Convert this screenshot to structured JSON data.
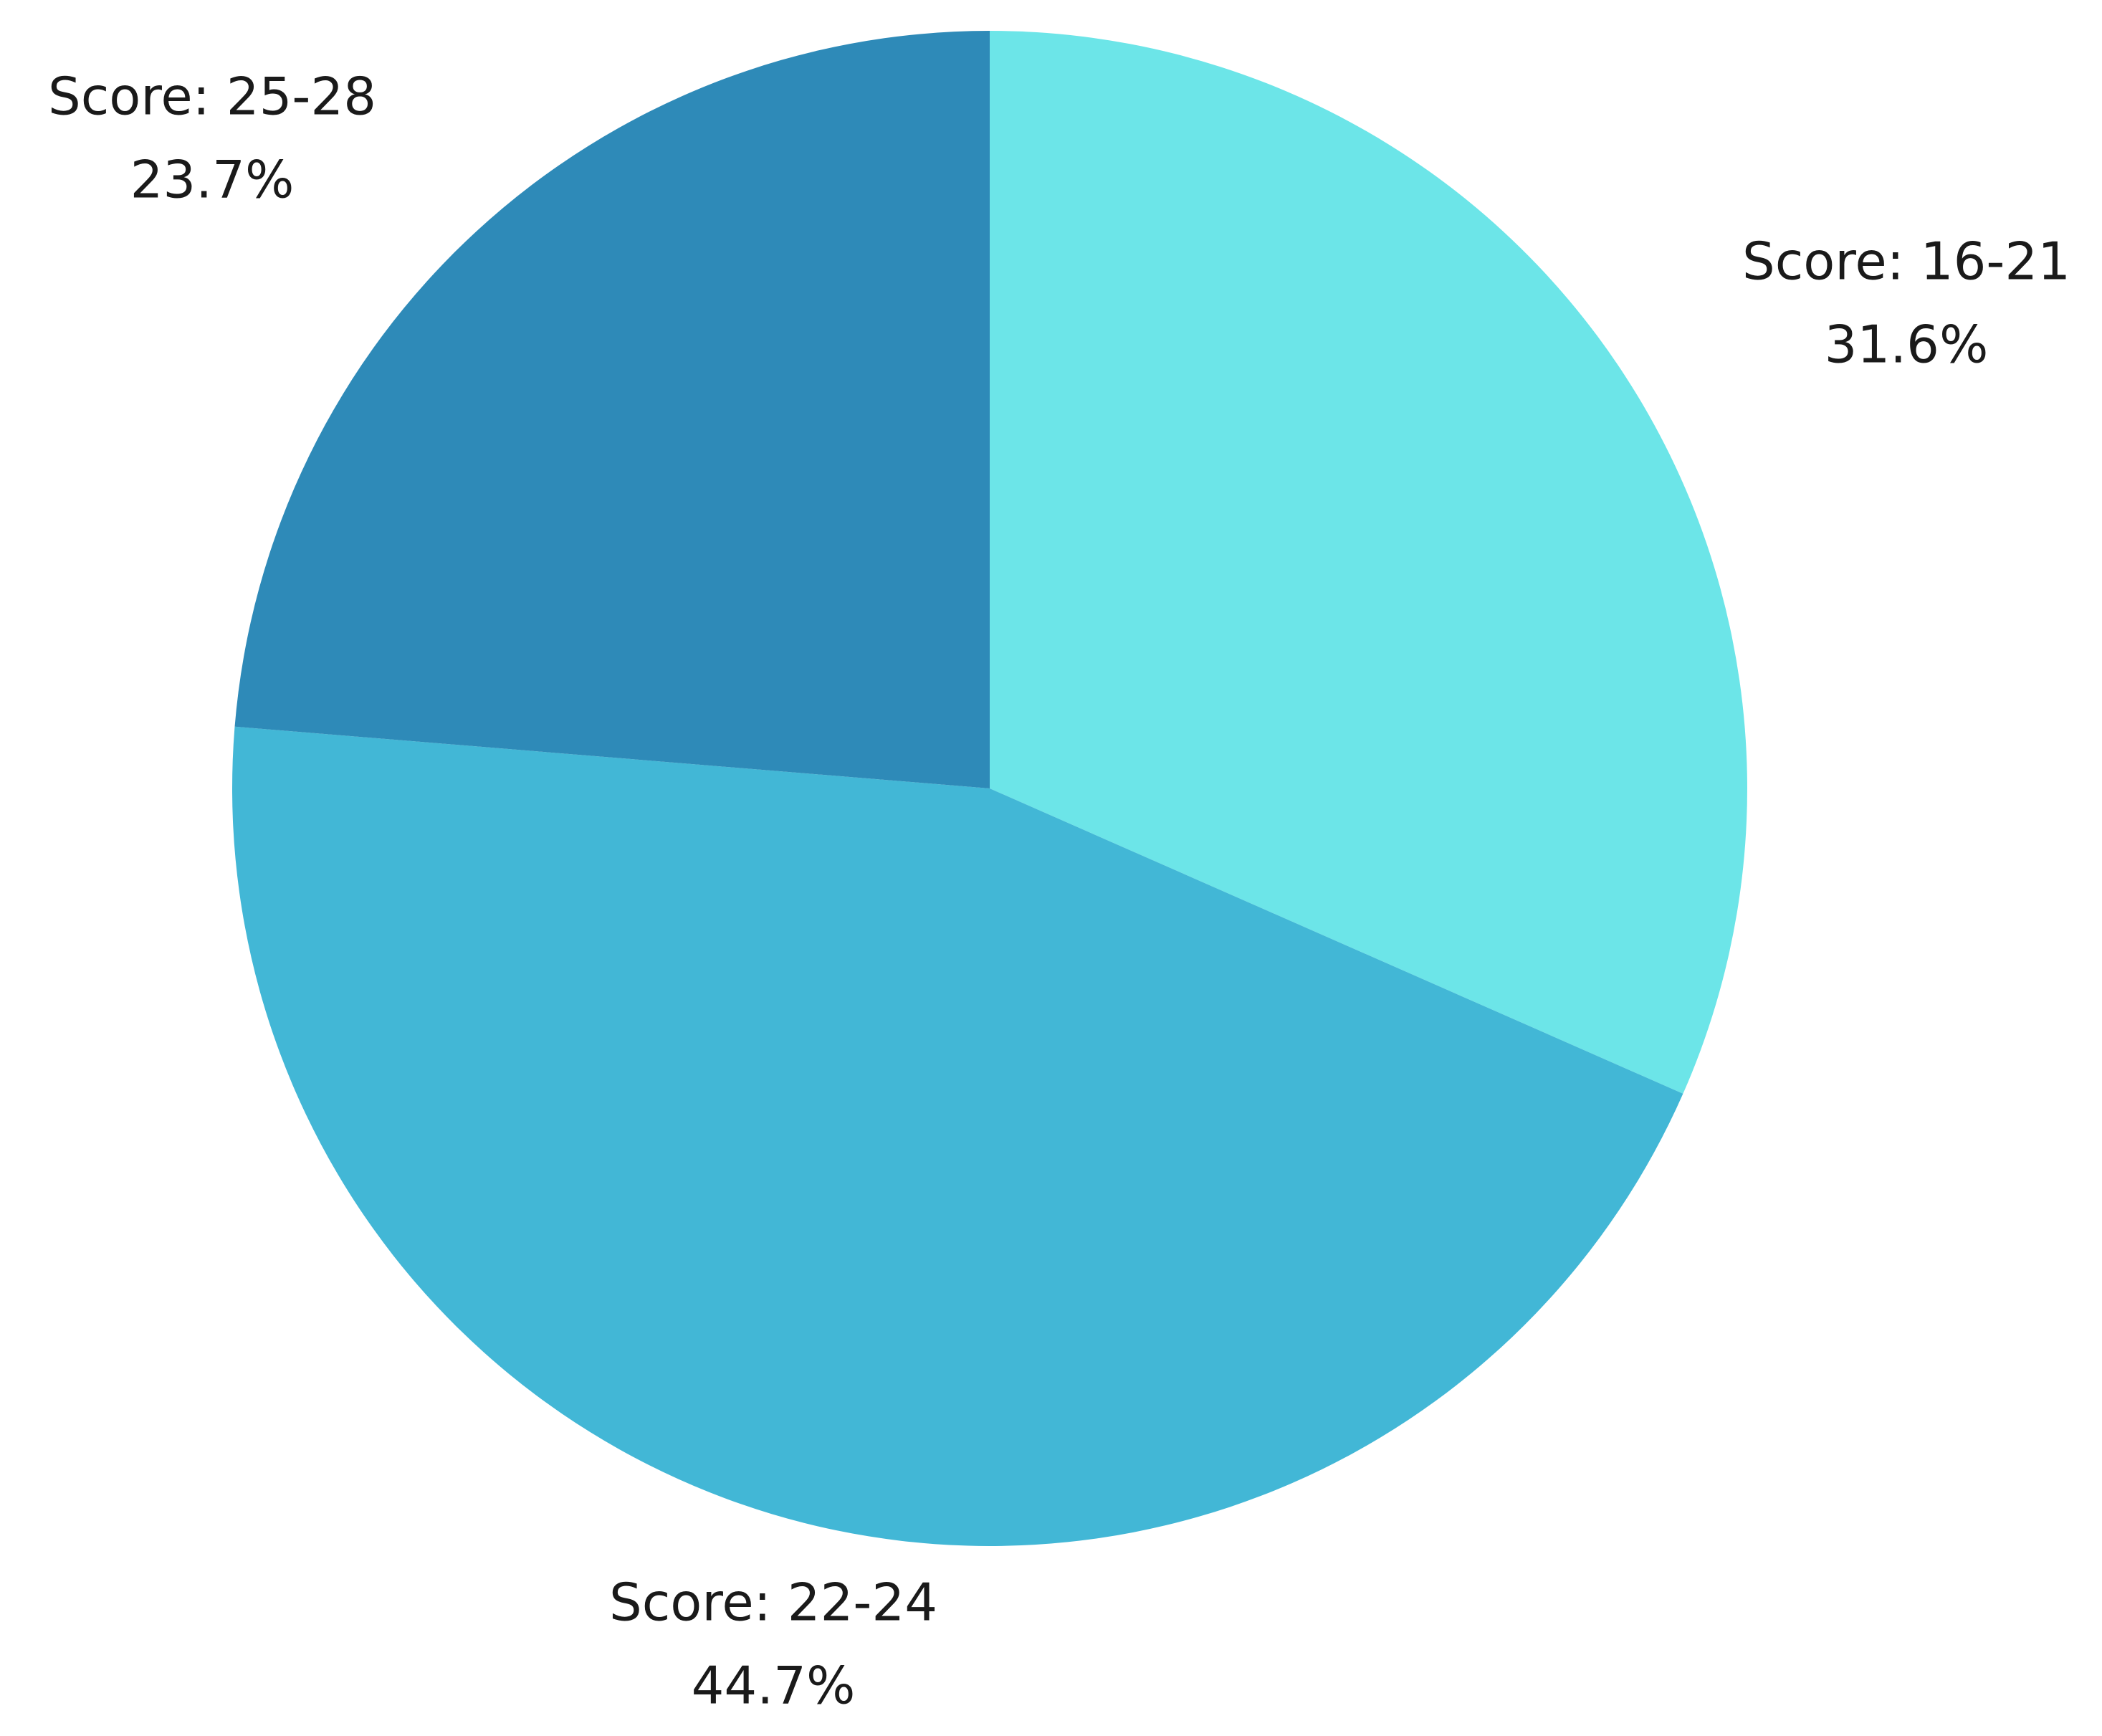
{
  "chart_data": {
    "type": "pie",
    "categories": [
      "Score: 16-21",
      "Score: 22-24",
      "Score: 25-28"
    ],
    "values": [
      31.6,
      44.7,
      23.7
    ],
    "value_labels": [
      "31.6%",
      "44.7%",
      "23.7%"
    ],
    "colors": [
      "#6ce5e8",
      "#42b7d6",
      "#2e8ab8"
    ]
  }
}
